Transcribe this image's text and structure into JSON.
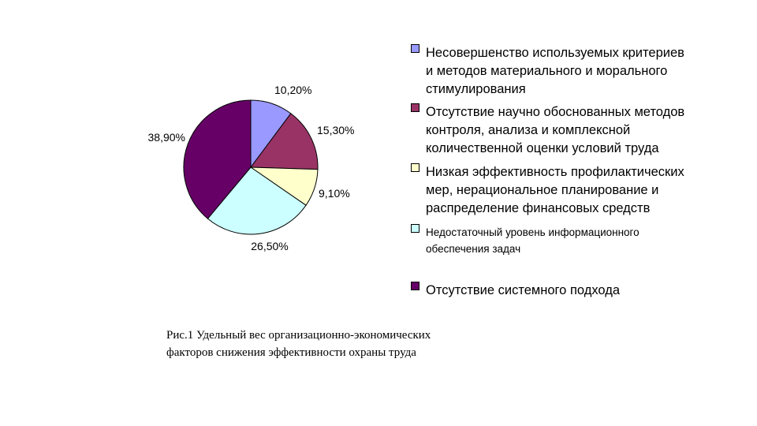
{
  "chart_data": {
    "type": "pie",
    "slices": [
      {
        "label": "Несовершенство используемых критериев\nи методов материального и морального\nстимулирования",
        "value": 10.2,
        "value_label": "10,20%",
        "color": "#9999ff"
      },
      {
        "label": "Отсутствие научно обоснованных методов\nконтроля, анализа и комплексной\nколичественной оценки условий труда",
        "value": 15.3,
        "value_label": "15,30%",
        "color": "#993366"
      },
      {
        "label": "Низкая эффективность профилактических\nмер, нерациональное планирование и\nраспределение финансовых средств",
        "value": 9.1,
        "value_label": "9,10%",
        "color": "#ffffcc"
      },
      {
        "label": "Недостаточный уровень информационного\nобеспечения задач",
        "value": 26.5,
        "value_label": "26,50%",
        "color": "#ccffff"
      },
      {
        "label": "Отсутствие системного подхода",
        "value": 38.9,
        "value_label": "38,90%",
        "color": "#660066"
      }
    ],
    "legend_position": "right"
  },
  "caption": "Рис.1 Удельный вес организационно-экономических\nфакторов снижения эффективности охраны труда"
}
